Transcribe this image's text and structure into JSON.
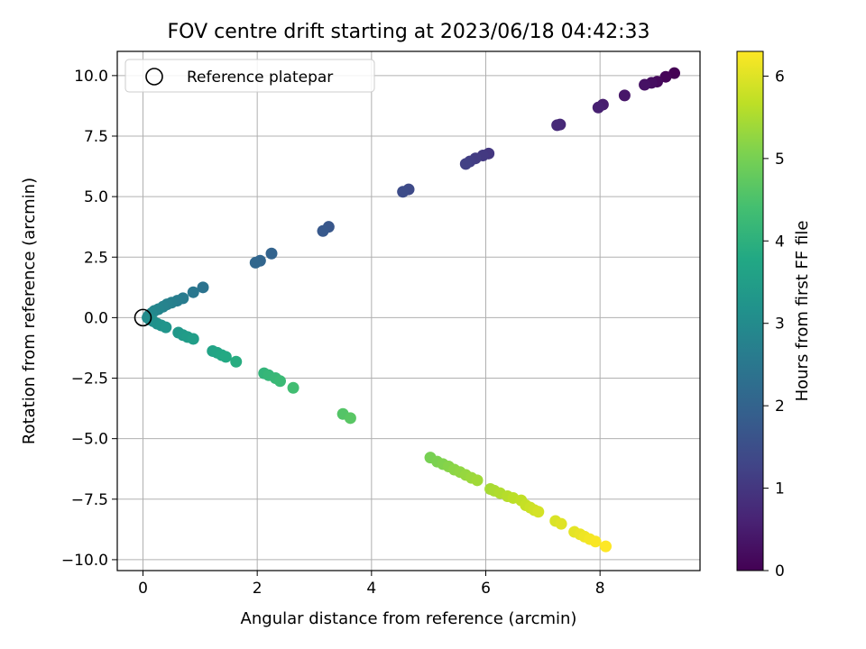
{
  "chart_data": {
    "type": "scatter",
    "title": "FOV centre drift starting at 2023/06/18 04:42:33",
    "xlabel": "Angular distance from reference (arcmin)",
    "ylabel": "Rotation from reference (arcmin)",
    "xlim": [
      -0.45,
      9.75
    ],
    "ylim": [
      -10.45,
      11.0
    ],
    "xticks": [
      0,
      2,
      4,
      6,
      8
    ],
    "xtick_labels": [
      "0",
      "2",
      "4",
      "6",
      "8"
    ],
    "yticks": [
      -10.0,
      -7.5,
      -5.0,
      -2.5,
      0.0,
      2.5,
      5.0,
      7.5,
      10.0
    ],
    "ytick_labels": [
      "−10.0",
      "−7.5",
      "−5.0",
      "−2.5",
      "0.0",
      "2.5",
      "5.0",
      "7.5",
      "10.0"
    ],
    "grid": true,
    "legend": {
      "placement": "upper-left",
      "entries": [
        "Reference platepar"
      ]
    },
    "colorbar": {
      "label": "Hours from first FF file",
      "colormap": "viridis",
      "range": [
        0,
        6.3
      ],
      "ticks": [
        0,
        1,
        2,
        3,
        4,
        5,
        6
      ],
      "tick_labels": [
        "0",
        "1",
        "2",
        "3",
        "4",
        "5",
        "6"
      ]
    },
    "reference_point": {
      "x": 0.0,
      "y": 0.0
    },
    "series": [
      {
        "points": [
          [
            9.3,
            10.1,
            0.0
          ],
          [
            9.15,
            9.95,
            0.08
          ],
          [
            9.0,
            9.75,
            0.15
          ],
          [
            8.9,
            9.7,
            0.22
          ],
          [
            8.78,
            9.62,
            0.3
          ],
          [
            8.43,
            9.18,
            0.4
          ],
          [
            8.05,
            8.8,
            0.5
          ],
          [
            7.97,
            8.68,
            0.55
          ],
          [
            7.3,
            7.98,
            0.7
          ],
          [
            7.25,
            7.95,
            0.75
          ],
          [
            6.05,
            6.78,
            1.0
          ],
          [
            5.95,
            6.7,
            1.05
          ],
          [
            5.82,
            6.58,
            1.1
          ],
          [
            5.72,
            6.45,
            1.15
          ],
          [
            5.65,
            6.35,
            1.2
          ],
          [
            4.65,
            5.3,
            1.4
          ],
          [
            4.55,
            5.2,
            1.45
          ],
          [
            3.25,
            3.75,
            1.7
          ],
          [
            3.15,
            3.58,
            1.75
          ],
          [
            2.25,
            2.65,
            2.0
          ],
          [
            2.05,
            2.35,
            2.05
          ],
          [
            1.97,
            2.27,
            2.1
          ],
          [
            1.05,
            1.25,
            2.4
          ],
          [
            0.88,
            1.05,
            2.5
          ],
          [
            0.7,
            0.8,
            2.6
          ],
          [
            0.6,
            0.7,
            2.65
          ],
          [
            0.5,
            0.62,
            2.7
          ],
          [
            0.42,
            0.55,
            2.75
          ],
          [
            0.35,
            0.45,
            2.8
          ],
          [
            0.27,
            0.35,
            2.85
          ],
          [
            0.2,
            0.28,
            2.88
          ],
          [
            0.15,
            0.18,
            2.92
          ],
          [
            0.1,
            0.08,
            2.95
          ],
          [
            0.08,
            0.0,
            3.0
          ],
          [
            0.12,
            -0.08,
            3.05
          ],
          [
            0.18,
            -0.15,
            3.1
          ],
          [
            0.25,
            -0.25,
            3.15
          ],
          [
            0.32,
            -0.32,
            3.2
          ],
          [
            0.4,
            -0.4,
            3.25
          ],
          [
            0.62,
            -0.62,
            3.35
          ],
          [
            0.7,
            -0.72,
            3.4
          ],
          [
            0.78,
            -0.8,
            3.45
          ],
          [
            0.88,
            -0.88,
            3.5
          ],
          [
            1.22,
            -1.38,
            3.65
          ],
          [
            1.3,
            -1.45,
            3.7
          ],
          [
            1.38,
            -1.55,
            3.75
          ],
          [
            1.45,
            -1.62,
            3.8
          ],
          [
            1.63,
            -1.82,
            3.9
          ],
          [
            2.12,
            -2.3,
            4.1
          ],
          [
            2.2,
            -2.38,
            4.15
          ],
          [
            2.32,
            -2.5,
            4.2
          ],
          [
            2.4,
            -2.62,
            4.25
          ],
          [
            2.63,
            -2.9,
            4.35
          ],
          [
            3.5,
            -3.98,
            4.6
          ],
          [
            3.63,
            -4.15,
            4.65
          ],
          [
            5.03,
            -5.78,
            5.0
          ],
          [
            5.15,
            -5.95,
            5.05
          ],
          [
            5.25,
            -6.05,
            5.1
          ],
          [
            5.35,
            -6.15,
            5.15
          ],
          [
            5.45,
            -6.28,
            5.2
          ],
          [
            5.55,
            -6.38,
            5.25
          ],
          [
            5.65,
            -6.5,
            5.3
          ],
          [
            5.75,
            -6.62,
            5.35
          ],
          [
            5.85,
            -6.72,
            5.4
          ],
          [
            6.08,
            -7.08,
            5.45
          ],
          [
            6.15,
            -7.15,
            5.5
          ],
          [
            6.25,
            -7.25,
            5.55
          ],
          [
            6.38,
            -7.38,
            5.6
          ],
          [
            6.48,
            -7.45,
            5.65
          ],
          [
            6.62,
            -7.55,
            5.7
          ],
          [
            6.7,
            -7.75,
            5.75
          ],
          [
            6.78,
            -7.85,
            5.8
          ],
          [
            6.85,
            -7.95,
            5.85
          ],
          [
            6.92,
            -8.02,
            5.9
          ],
          [
            7.22,
            -8.4,
            5.95
          ],
          [
            7.32,
            -8.52,
            6.0
          ],
          [
            7.55,
            -8.85,
            6.05
          ],
          [
            7.65,
            -8.95,
            6.1
          ],
          [
            7.73,
            -9.05,
            6.15
          ],
          [
            7.82,
            -9.15,
            6.2
          ],
          [
            7.92,
            -9.25,
            6.25
          ],
          [
            8.1,
            -9.45,
            6.3
          ]
        ]
      }
    ]
  }
}
